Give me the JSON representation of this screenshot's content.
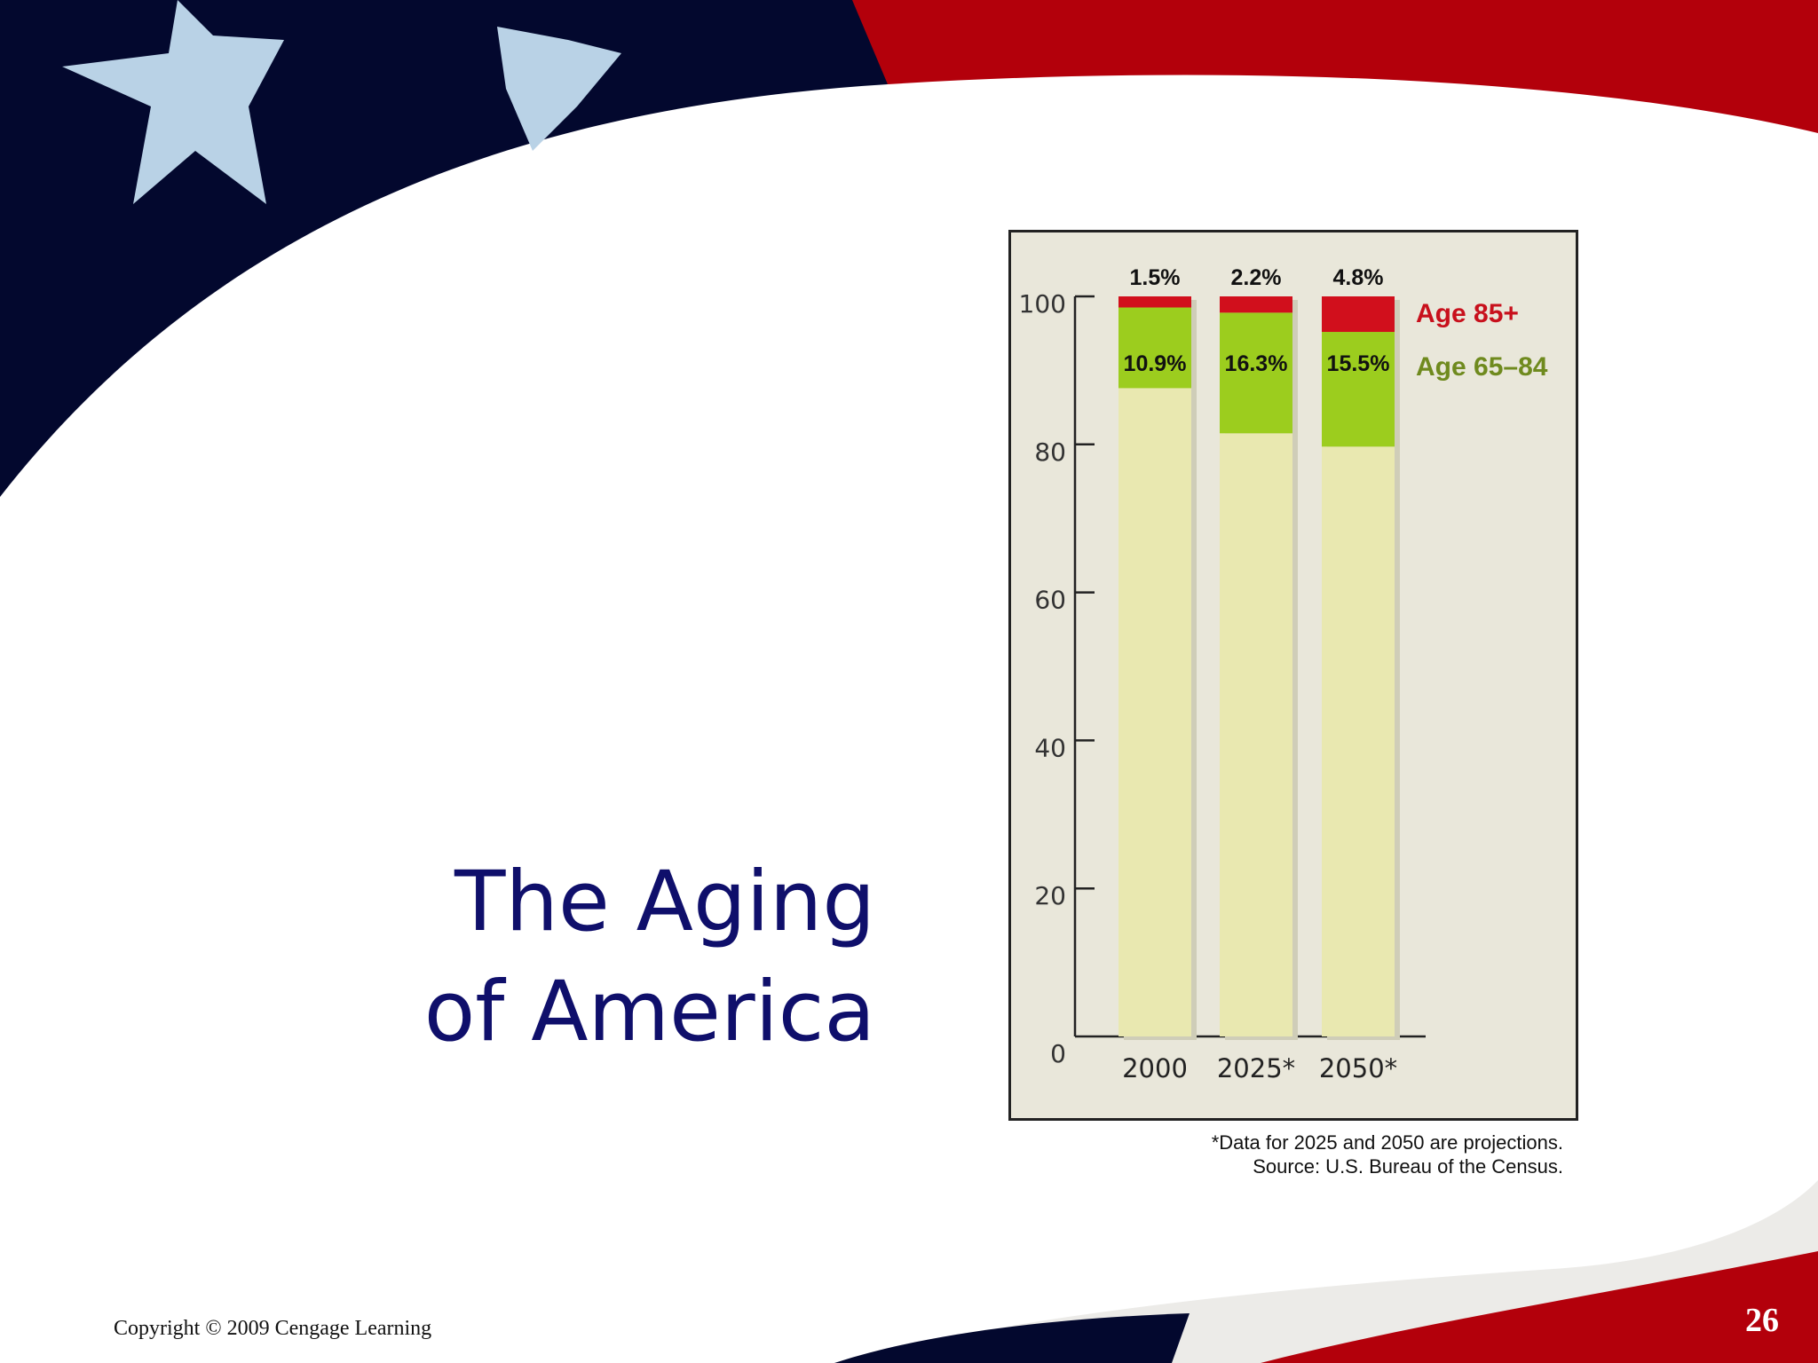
{
  "slide": {
    "title_line1": "The Aging",
    "title_line2": "of America",
    "note_line1": "*Data for 2025 and 2050 are projections.",
    "note_line2": "Source: U.S. Bureau of the Census.",
    "copyright": "Copyright © 2009 Cengage Learning",
    "page_number": "26"
  },
  "colors": {
    "title": "#0f0f6b",
    "age85": "#d10f1c",
    "age65": "#9ccd1e",
    "under65": "#e9e8b0",
    "panel": "#e9e7da"
  },
  "chart_data": {
    "type": "bar",
    "stacked": true,
    "categories": [
      "2000",
      "2025*",
      "2050*"
    ],
    "series": [
      {
        "name": "",
        "values": [
          87.6,
          81.5,
          79.7
        ]
      },
      {
        "name": "Age 65–84",
        "values": [
          10.9,
          16.3,
          15.5
        ]
      },
      {
        "name": "Age 85+",
        "values": [
          1.5,
          2.2,
          4.8
        ]
      }
    ],
    "data_labels": {
      "age85": [
        "1.5%",
        "2.2%",
        "4.8%"
      ],
      "age65": [
        "10.9%",
        "16.3%",
        "15.5%"
      ]
    },
    "yticks": [
      "0",
      "20",
      "40",
      "60",
      "80",
      "100"
    ],
    "ylim": [
      0,
      100
    ],
    "legend_placement": "right",
    "grid": false
  }
}
